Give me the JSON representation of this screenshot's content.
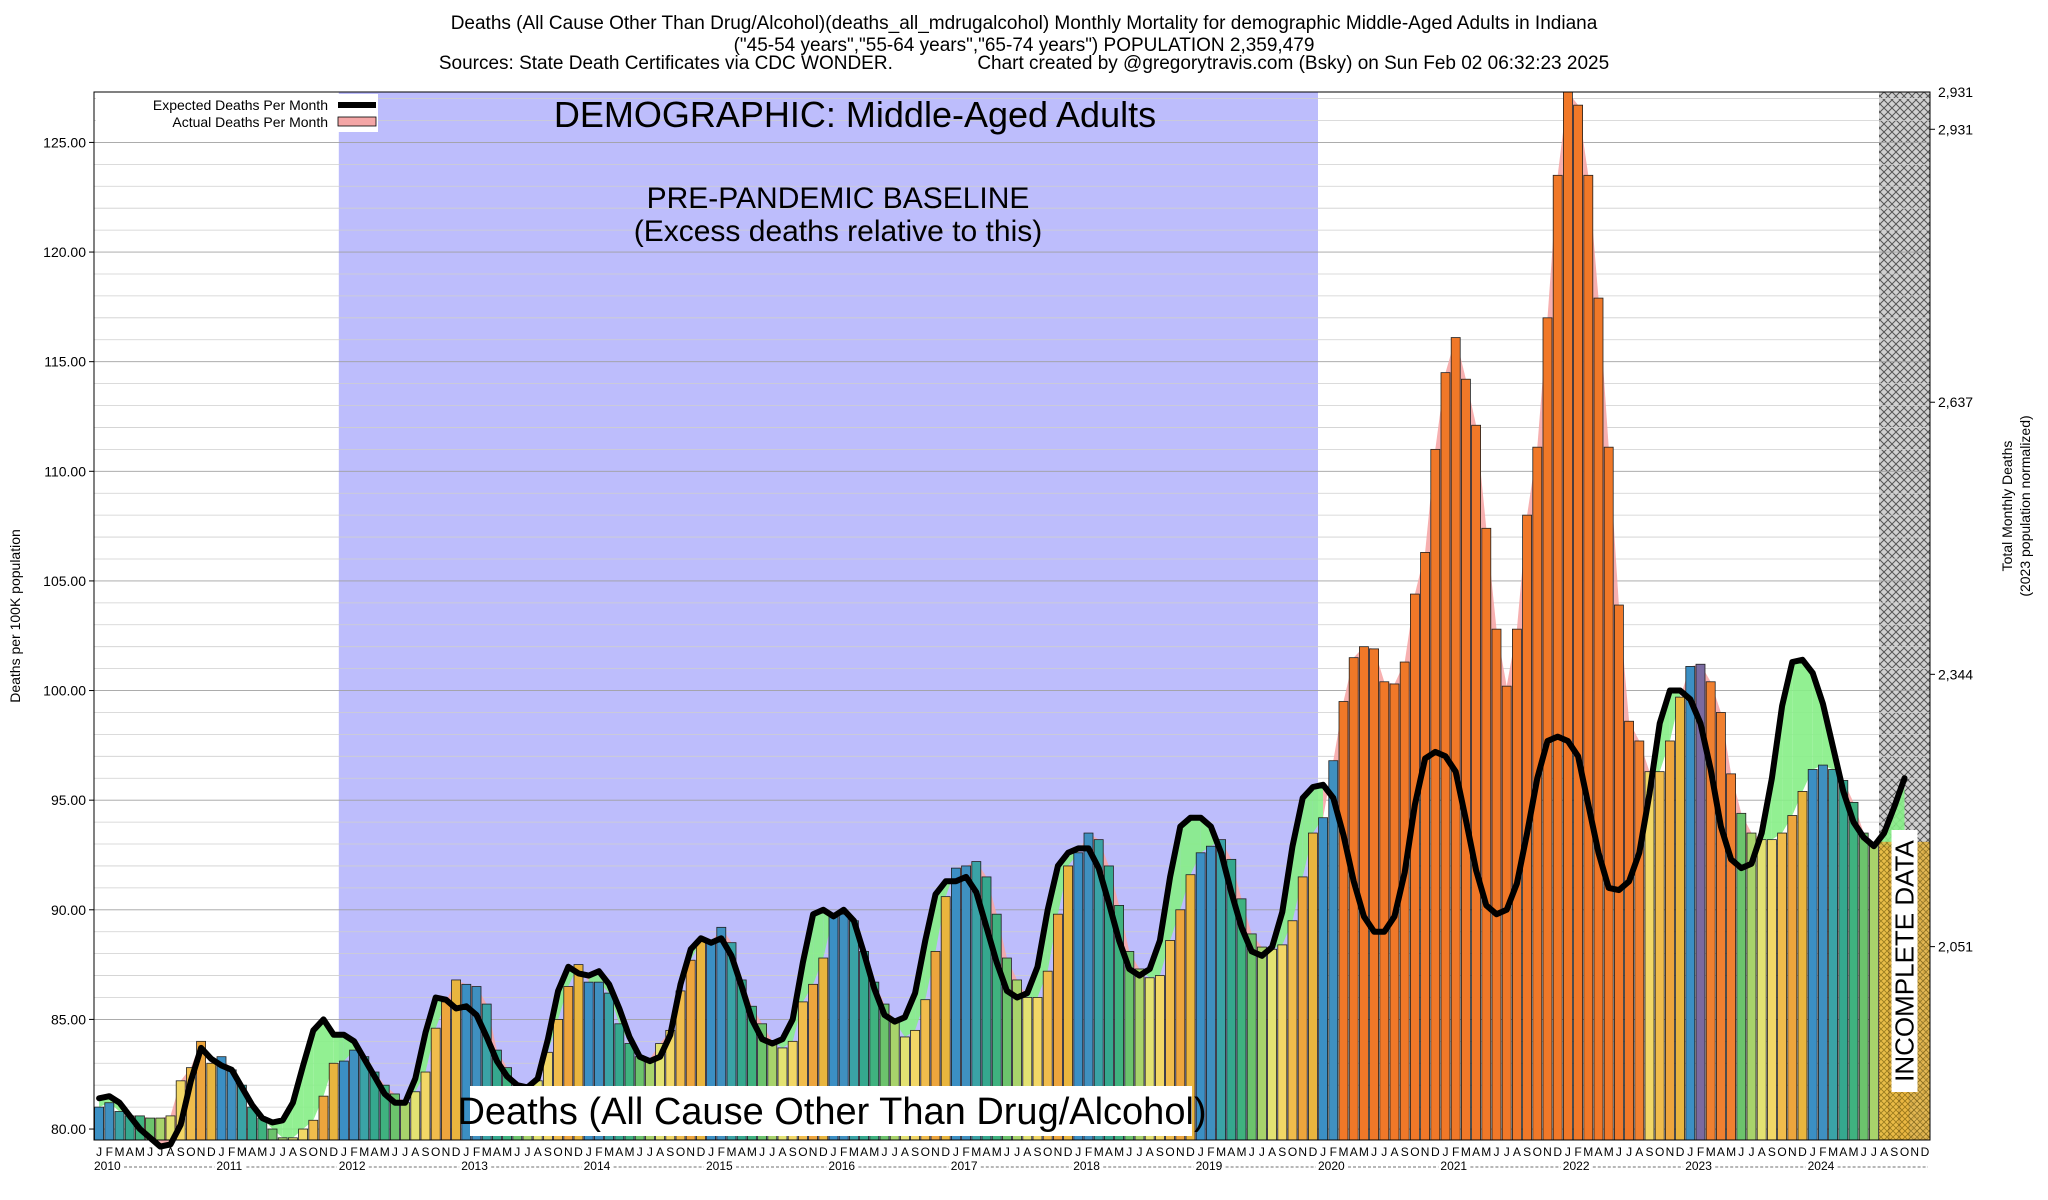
{
  "header": {
    "title_line1": "Deaths (All Cause Other Than Drug/Alcohol)(deaths_all_mdrugalcohol) Monthly Mortality for demographic Middle-Aged Adults in Indiana",
    "title_line2": "(\"45-54 years\",\"55-64 years\",\"65-74 years\") POPULATION 2,359,479",
    "title_line3": "Sources: State Death Certificates via CDC WONDER.                Chart created by @gregorytravis.com (Bsky) on Sun Feb 02 06:32:23 2025"
  },
  "chart_data": {
    "type": "bar",
    "demographic_label": "DEMOGRAPHIC: Middle-Aged Adults",
    "baseline_label_1": "PRE-PANDEMIC BASELINE",
    "baseline_label_2": "(Excess deaths relative to this)",
    "series_label": "Deaths (All Cause Other Than Drug/Alcohol)",
    "incomplete_label": "INCOMPLETE DATA",
    "ylabel_left": "Deaths per 100K population",
    "ylabel_right_1": "Total Monthly Deaths",
    "ylabel_right_2": "(2023 population normalized)",
    "ylim": [
      79.5,
      127.3
    ],
    "yticks_left": [
      "80.00",
      "85.00",
      "90.00",
      "95.00",
      "100.00",
      "105.00",
      "110.00",
      "115.00",
      "120.00",
      "125.00"
    ],
    "yticks_left_values": [
      80,
      85,
      90,
      95,
      100,
      105,
      110,
      115,
      120,
      125
    ],
    "yticks_right": [
      "2,051",
      "2,344",
      "2,637",
      "2,931"
    ],
    "yticks_right_values": [
      88.32,
      100.74,
      113.15,
      125.6
    ],
    "legend": [
      {
        "label": "Expected Deaths Per Month",
        "color": "#000000"
      },
      {
        "label": "Actual Deaths Per Month",
        "color": "#f4a6a6"
      }
    ],
    "month_letters": [
      "J",
      "F",
      "M",
      "A",
      "M",
      "J",
      "J",
      "A",
      "S",
      "O",
      "N",
      "D"
    ],
    "years": [
      "2010",
      "2011",
      "2012",
      "2013",
      "2014",
      "2015",
      "2016",
      "2017",
      "2018",
      "2019",
      "2020",
      "2021",
      "2022",
      "2023",
      "2024"
    ],
    "baseline_range_months": [
      24,
      120
    ],
    "incomplete_from_month": 175,
    "actual_values": [
      81.0,
      81.2,
      80.8,
      80.6,
      80.6,
      80.5,
      80.5,
      80.6,
      82.2,
      82.8,
      84.0,
      83.0,
      83.3,
      82.7,
      82.0,
      81.0,
      80.5,
      80.0,
      79.6,
      79.6,
      80.0,
      80.4,
      81.5,
      83.0,
      83.1,
      83.6,
      83.3,
      82.6,
      82.0,
      81.6,
      81.2,
      81.7,
      82.6,
      84.6,
      85.8,
      86.8,
      86.6,
      86.5,
      85.7,
      83.6,
      82.8,
      82.0,
      81.8,
      82.2,
      83.5,
      85.0,
      86.5,
      87.5,
      86.7,
      86.7,
      86.2,
      84.8,
      83.9,
      83.3,
      83.2,
      83.9,
      84.5,
      86.3,
      87.7,
      88.6,
      88.5,
      89.2,
      88.5,
      86.8,
      85.6,
      84.8,
      84.0,
      83.7,
      84.0,
      85.8,
      86.6,
      87.8,
      89.8,
      89.8,
      89.5,
      88.1,
      86.7,
      85.7,
      84.9,
      84.2,
      84.5,
      85.9,
      88.1,
      90.6,
      91.9,
      92.0,
      92.2,
      91.5,
      89.8,
      87.8,
      86.8,
      86.0,
      86.0,
      87.2,
      89.8,
      92.0,
      92.6,
      93.5,
      93.2,
      92.0,
      90.2,
      88.1,
      87.3,
      86.9,
      87.0,
      88.6,
      90.0,
      91.6,
      92.6,
      92.9,
      93.2,
      92.3,
      90.5,
      88.9,
      88.3,
      88.2,
      88.4,
      89.5,
      91.5,
      93.5,
      94.2,
      96.8,
      99.5,
      101.5,
      102.0,
      101.9,
      100.4,
      100.3,
      101.3,
      104.4,
      106.3,
      111.0,
      114.5,
      116.1,
      114.2,
      112.1,
      107.4,
      102.8,
      100.2,
      102.8,
      108.0,
      111.1,
      117.0,
      123.5,
      127.3,
      126.7,
      123.5,
      117.9,
      111.1,
      103.9,
      98.6,
      97.7,
      96.3,
      96.3,
      97.7,
      99.7,
      101.1,
      101.2,
      100.4,
      99.0,
      96.2,
      94.4,
      93.5,
      93.2,
      93.2,
      93.5,
      94.3,
      95.4,
      96.4,
      96.6,
      96.4,
      95.9,
      94.9,
      93.5,
      93.0,
      92.9,
      92.8,
      93.1
    ],
    "expected_values": [
      81.4,
      81.5,
      81.2,
      80.6,
      80.0,
      79.6,
      79.2,
      79.3,
      80.2,
      82.2,
      83.7,
      83.2,
      82.9,
      82.7,
      81.9,
      81.1,
      80.5,
      80.3,
      80.4,
      81.2,
      82.9,
      84.5,
      85.0,
      84.3,
      84.3,
      84.0,
      83.2,
      82.4,
      81.6,
      81.2,
      81.2,
      82.3,
      84.4,
      86.0,
      85.9,
      85.5,
      85.6,
      85.2,
      84.2,
      83.1,
      82.4,
      82.0,
      81.9,
      82.3,
      84.1,
      86.3,
      87.4,
      87.1,
      87.0,
      87.2,
      86.6,
      85.5,
      84.2,
      83.3,
      83.1,
      83.3,
      84.3,
      86.6,
      88.2,
      88.7,
      88.5,
      88.7,
      87.9,
      86.5,
      85.0,
      84.1,
      83.9,
      84.1,
      85.0,
      87.6,
      89.8,
      90.0,
      89.7,
      90.0,
      89.5,
      88.0,
      86.4,
      85.2,
      84.9,
      85.1,
      86.2,
      88.6,
      90.7,
      91.3,
      91.3,
      91.5,
      90.8,
      89.2,
      87.6,
      86.3,
      86.0,
      86.2,
      87.4,
      90.0,
      92.0,
      92.6,
      92.8,
      92.8,
      91.9,
      90.3,
      88.6,
      87.3,
      87.0,
      87.3,
      88.6,
      91.5,
      93.8,
      94.2,
      94.2,
      93.8,
      92.6,
      90.8,
      89.2,
      88.1,
      87.9,
      88.3,
      89.9,
      92.9,
      95.1,
      95.6,
      95.7,
      95.1,
      93.4,
      91.3,
      89.7,
      89.0,
      89.0,
      89.7,
      91.7,
      94.8,
      96.9,
      97.2,
      97.0,
      96.3,
      94.1,
      91.8,
      90.2,
      89.8,
      90.0,
      91.2,
      93.5,
      96.0,
      97.7,
      97.9,
      97.7,
      97.0,
      94.8,
      92.6,
      91.0,
      90.9,
      91.3,
      92.6,
      95.3,
      98.5,
      100.0,
      100.0,
      99.6,
      98.5,
      96.4,
      93.8,
      92.3,
      91.9,
      92.1,
      93.5,
      96.0,
      99.3,
      101.3,
      101.4,
      100.8,
      99.4,
      97.4,
      95.4,
      94.0,
      93.3,
      92.9,
      93.5,
      94.7,
      96.0
    ]
  }
}
